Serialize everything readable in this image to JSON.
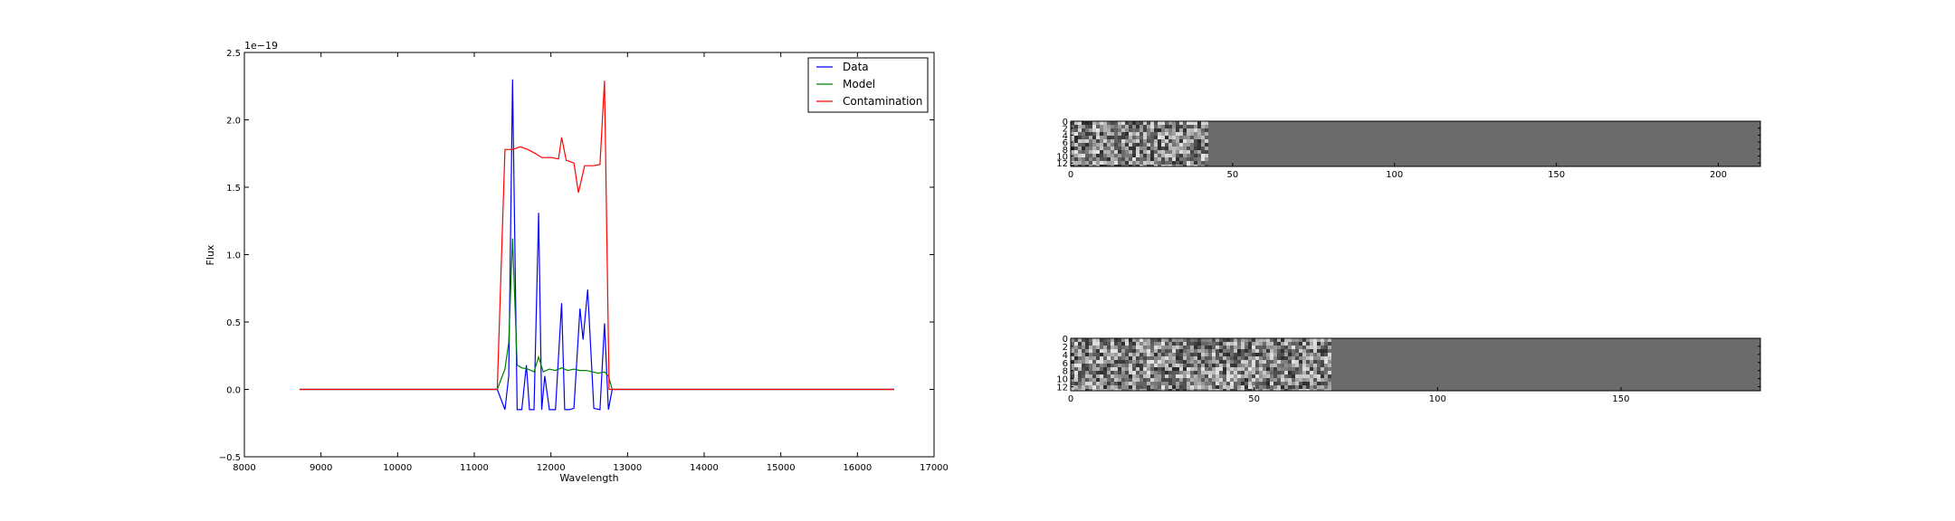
{
  "chart_data": [
    {
      "type": "line",
      "xlabel": "Wavelength",
      "ylabel": "Flux",
      "offset_label": "1e−19",
      "xlim": [
        8000,
        17000
      ],
      "ylim": [
        -0.5,
        2.5
      ],
      "xticks": [
        8000,
        9000,
        10000,
        11000,
        12000,
        13000,
        14000,
        15000,
        16000,
        17000
      ],
      "yticks": [
        -0.5,
        0.0,
        0.5,
        1.0,
        1.5,
        2.0,
        2.5
      ],
      "ytick_labels": [
        "−0.5",
        "0.0",
        "0.5",
        "1.0",
        "1.5",
        "2.0",
        "2.5"
      ],
      "legend_position": "top-right",
      "series": [
        {
          "name": "Data",
          "color": "#0000ff",
          "x": [
            8720,
            11300,
            11400,
            11450,
            11500,
            11560,
            11620,
            11680,
            11720,
            11780,
            11840,
            11880,
            11920,
            11980,
            12060,
            12140,
            12180,
            12240,
            12300,
            12380,
            12420,
            12480,
            12560,
            12640,
            12700,
            12750,
            12800,
            16480
          ],
          "y": [
            0.0,
            0.0,
            -0.15,
            0.1,
            2.3,
            -0.15,
            -0.15,
            0.18,
            -0.15,
            -0.15,
            1.31,
            -0.15,
            0.1,
            -0.15,
            -0.15,
            0.64,
            -0.15,
            -0.15,
            -0.14,
            0.6,
            0.37,
            0.74,
            -0.14,
            -0.15,
            0.49,
            -0.15,
            0.0,
            0.0
          ]
        },
        {
          "name": "Model",
          "color": "#008000",
          "x": [
            8720,
            11300,
            11400,
            11450,
            11500,
            11560,
            11620,
            11700,
            11780,
            11840,
            11900,
            11980,
            12060,
            12140,
            12220,
            12300,
            12380,
            12460,
            12540,
            12620,
            12700,
            12750,
            12800,
            16480
          ],
          "y": [
            0.0,
            0.0,
            0.15,
            0.35,
            1.12,
            0.18,
            0.16,
            0.15,
            0.13,
            0.24,
            0.13,
            0.15,
            0.14,
            0.16,
            0.14,
            0.15,
            0.14,
            0.14,
            0.13,
            0.12,
            0.13,
            0.1,
            0.0,
            0.0
          ]
        },
        {
          "name": "Contamination",
          "color": "#ff0000",
          "x": [
            8720,
            11300,
            11400,
            11500,
            11600,
            11700,
            11800,
            11880,
            12000,
            12100,
            12140,
            12200,
            12300,
            12360,
            12440,
            12560,
            12640,
            12700,
            12760,
            12800,
            16480
          ],
          "y": [
            0.0,
            0.0,
            1.78,
            1.78,
            1.8,
            1.78,
            1.75,
            1.72,
            1.72,
            1.71,
            1.87,
            1.7,
            1.68,
            1.46,
            1.66,
            1.66,
            1.67,
            2.29,
            0.0,
            0.0,
            0.0
          ]
        }
      ]
    },
    {
      "type": "heatmap",
      "xticks": [
        0,
        50,
        100,
        150,
        200
      ],
      "yticks": [
        0,
        2,
        4,
        6,
        8,
        10,
        12
      ],
      "xlim": [
        0,
        213
      ],
      "ylim": [
        0,
        13
      ],
      "textured_columns": 42
    },
    {
      "type": "heatmap",
      "xticks": [
        0,
        50,
        100,
        150
      ],
      "yticks": [
        0,
        2,
        4,
        6,
        8,
        10,
        12
      ],
      "xlim": [
        0,
        188
      ],
      "ylim": [
        0,
        13
      ],
      "textured_columns": 71
    }
  ],
  "colors": {
    "heatmap_flat": "#6b6b6b",
    "axes": "#000000"
  }
}
